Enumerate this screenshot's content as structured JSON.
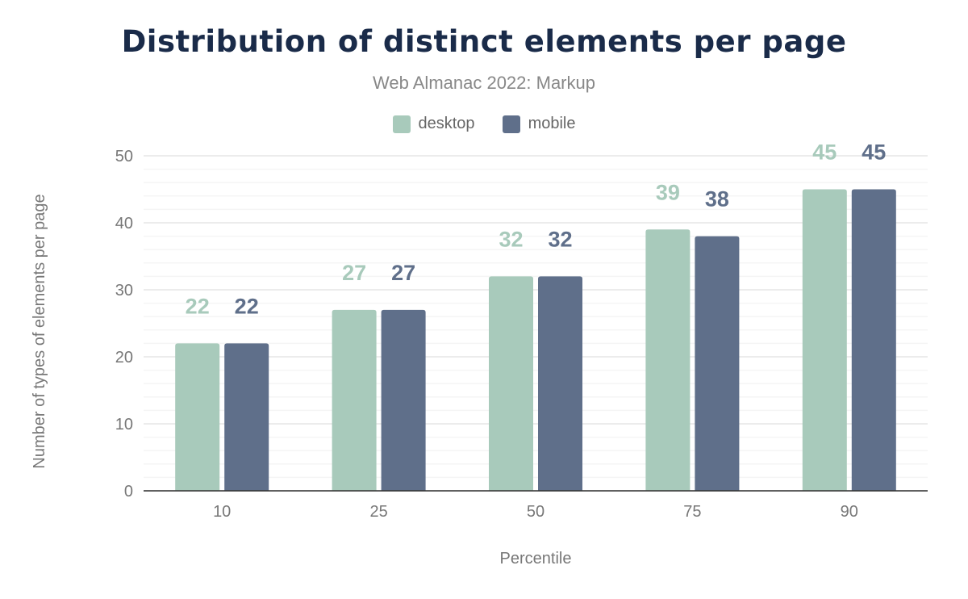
{
  "chart_data": {
    "type": "bar",
    "title": "Distribution of distinct elements per page",
    "subtitle": "Web Almanac 2022: Markup",
    "xlabel": "Percentile",
    "ylabel": "Number of types of elements per page",
    "categories": [
      "10",
      "25",
      "50",
      "75",
      "90"
    ],
    "series": [
      {
        "name": "desktop",
        "color": "#a8cabb",
        "values": [
          22,
          27,
          32,
          39,
          45
        ]
      },
      {
        "name": "mobile",
        "color": "#5f6f8a",
        "values": [
          22,
          27,
          32,
          38,
          45
        ]
      }
    ],
    "ylim": [
      0,
      50
    ],
    "yticks": [
      0,
      10,
      20,
      30,
      40,
      50
    ],
    "grid": true,
    "legend": "top"
  }
}
